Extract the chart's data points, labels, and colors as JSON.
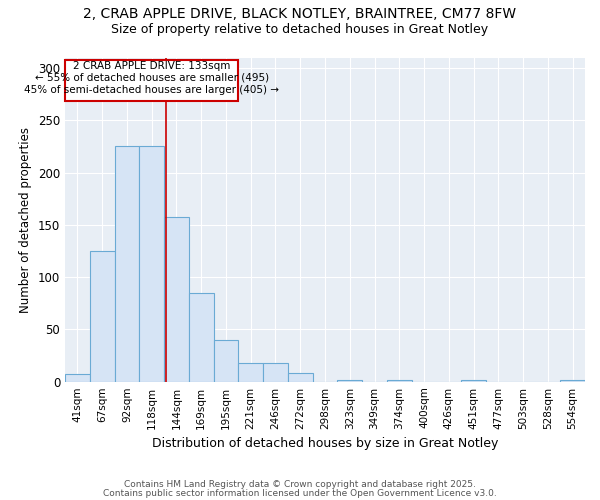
{
  "title_line1": "2, CRAB APPLE DRIVE, BLACK NOTLEY, BRAINTREE, CM77 8FW",
  "title_line2": "Size of property relative to detached houses in Great Notley",
  "xlabel": "Distribution of detached houses by size in Great Notley",
  "ylabel": "Number of detached properties",
  "bar_labels": [
    "41sqm",
    "67sqm",
    "92sqm",
    "118sqm",
    "144sqm",
    "169sqm",
    "195sqm",
    "221sqm",
    "246sqm",
    "272sqm",
    "298sqm",
    "323sqm",
    "349sqm",
    "374sqm",
    "400sqm",
    "426sqm",
    "451sqm",
    "477sqm",
    "503sqm",
    "528sqm",
    "554sqm"
  ],
  "bar_values": [
    7,
    125,
    225,
    225,
    157,
    85,
    40,
    18,
    18,
    8,
    0,
    2,
    0,
    2,
    0,
    0,
    2,
    0,
    0,
    0,
    2
  ],
  "bar_color": "#d6e4f5",
  "bar_edge_color": "#6aaad4",
  "ylim": [
    0,
    310
  ],
  "yticks": [
    0,
    50,
    100,
    150,
    200,
    250,
    300
  ],
  "marker_label": "2 CRAB APPLE DRIVE: 133sqm",
  "annotation_line2": "← 55% of detached houses are smaller (495)",
  "annotation_line3": "45% of semi-detached houses are larger (405) →",
  "footer_line1": "Contains HM Land Registry data © Crown copyright and database right 2025.",
  "footer_line2": "Contains public sector information licensed under the Open Government Licence v3.0.",
  "background_color": "#ffffff",
  "plot_background": "#e8eef5"
}
